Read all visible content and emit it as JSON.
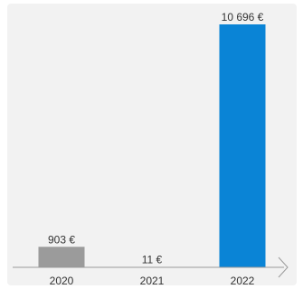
{
  "chart_data": {
    "type": "bar",
    "categories": [
      "2020",
      "2021",
      "2022"
    ],
    "values": [
      903,
      11,
      10696
    ],
    "data_labels": [
      "903 €",
      "11 €",
      "10 696 €"
    ],
    "colors": [
      "#9b9b9b",
      "#9b9b9b",
      "#0a84d6"
    ],
    "ylim": [
      0,
      10696
    ],
    "grid": false,
    "title": "",
    "xlabel": "",
    "ylabel": ""
  }
}
